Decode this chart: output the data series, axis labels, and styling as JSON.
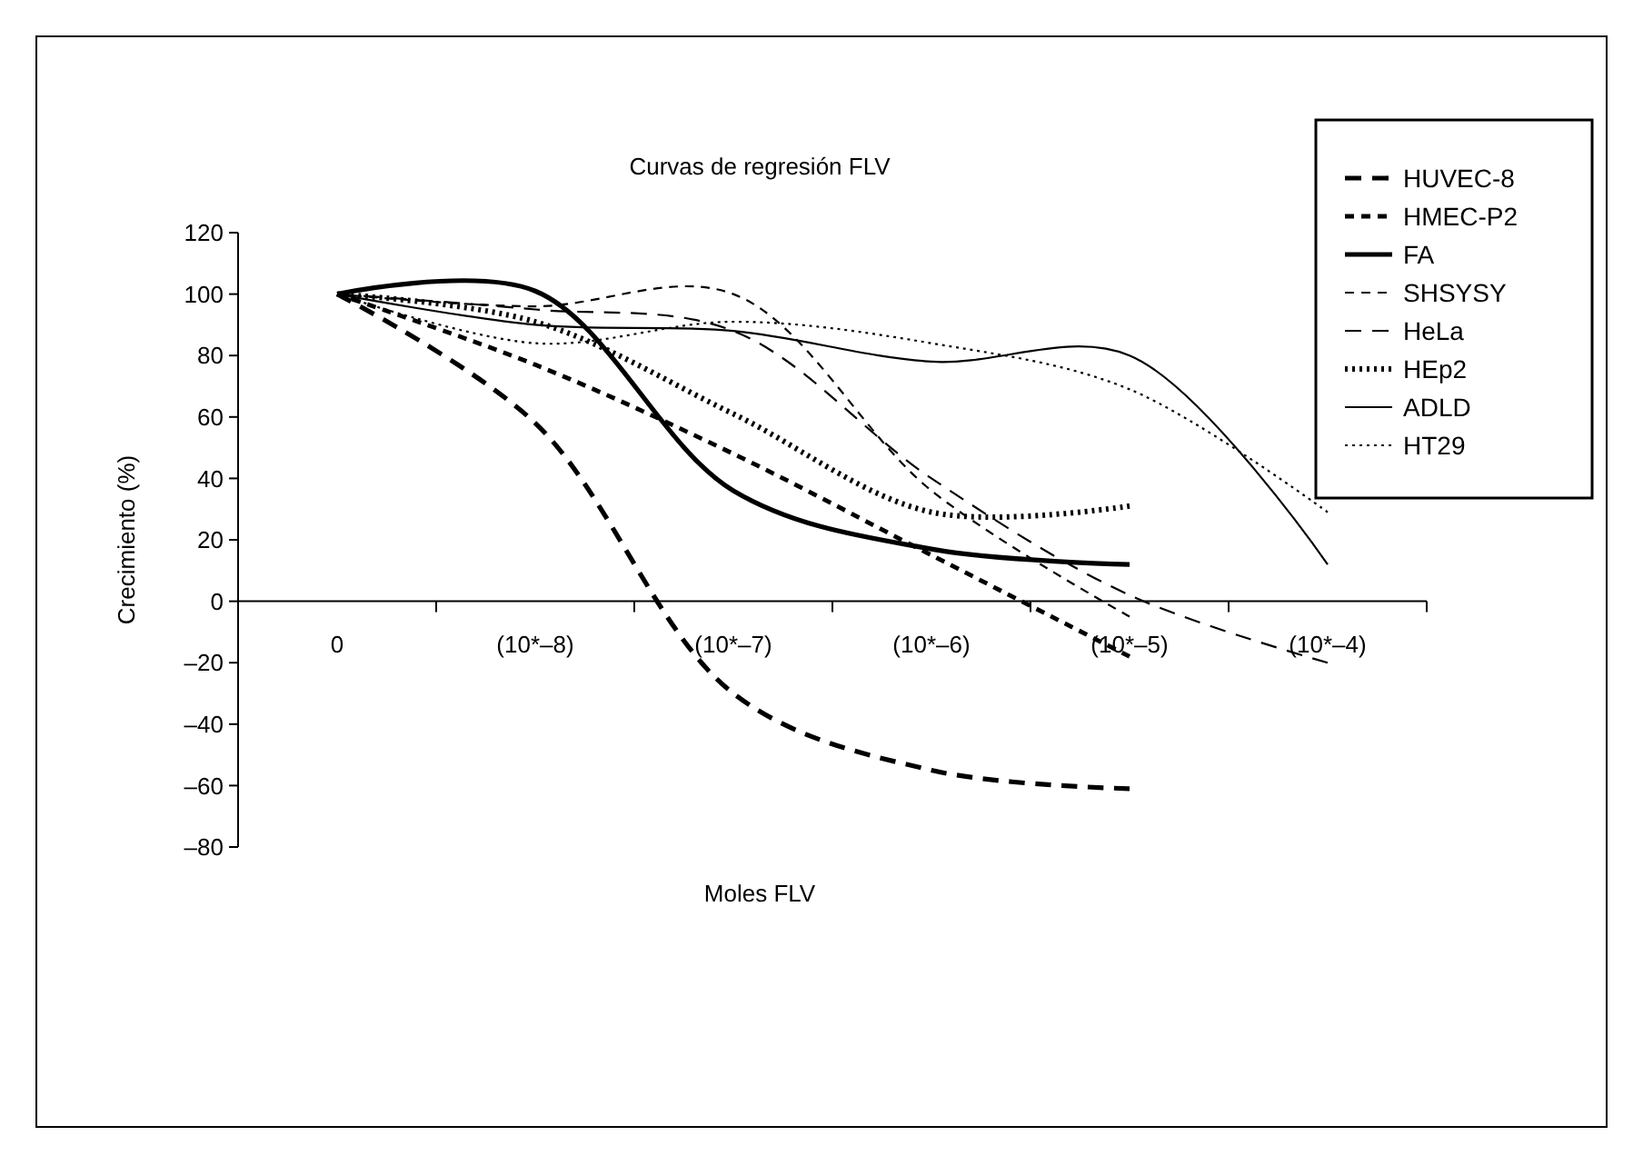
{
  "chart_data": {
    "type": "line",
    "title": "Curvas de regresión FLV",
    "xlabel": "Moles FLV",
    "ylabel": "Crecimiento (%)",
    "categories": [
      "0",
      "(10*–8)",
      "(10*–7)",
      "(10*–6)",
      "(10*–5)",
      "(10*–4)"
    ],
    "ylim": [
      -80,
      120
    ],
    "yticks": [
      {
        "value": -80,
        "label": "–80"
      },
      {
        "value": -60,
        "label": "–60"
      },
      {
        "value": -40,
        "label": "–40"
      },
      {
        "value": -20,
        "label": "–20"
      },
      0,
      20,
      40,
      60,
      80,
      100,
      120
    ],
    "grid": false,
    "legend": "top right",
    "marker": "none",
    "series": [
      {
        "name": "HUVEC-8",
        "color": "#000000",
        "line_style": "dashed",
        "values": [
          100,
          58,
          -30,
          -55,
          -61,
          null
        ]
      },
      {
        "name": "HMEC-P2",
        "color": "#000000",
        "line_style": "dashed",
        "values": [
          100,
          77,
          48,
          15,
          -18,
          null
        ]
      },
      {
        "name": "FA",
        "color": "#000000",
        "line_style": "solid",
        "values": [
          100,
          101,
          36,
          17,
          12,
          null
        ]
      },
      {
        "name": "SHSYSY",
        "color": "#000000",
        "line_style": "dashed",
        "values": [
          100,
          96,
          100,
          36,
          -5,
          null
        ]
      },
      {
        "name": "HeLa",
        "color": "#000000",
        "line_style": "dashed",
        "values": [
          100,
          95,
          88,
          40,
          2,
          -20
        ]
      },
      {
        "name": "HEp2",
        "color": "#000000",
        "line_style": "dotted",
        "values": [
          100,
          91,
          61,
          29,
          31,
          null
        ]
      },
      {
        "name": "ADLD",
        "color": "#000000",
        "line_style": "solid",
        "values": [
          100,
          90,
          88,
          78,
          80,
          12
        ]
      },
      {
        "name": "HT29",
        "color": "#000000",
        "line_style": "dotted",
        "values": [
          100,
          84,
          91,
          84,
          69,
          29
        ]
      }
    ]
  }
}
